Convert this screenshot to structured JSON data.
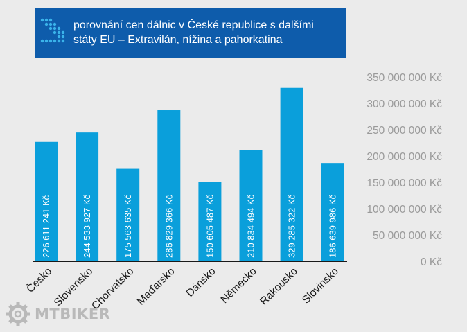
{
  "chart_title": "porovnání cen dálnic v České republice s dalšími státy EU – Extravilán, nížina a pahorkatina",
  "watermark": "MTBIKER",
  "colors": {
    "bar": "#0a9fdb",
    "title_background": "#0e5cab",
    "page_background": "#ebebeb"
  },
  "chart_data": {
    "type": "bar",
    "title": "porovnání cen dálnic v České republice s dalšími státy EU – Extravilán, nížina a pahorkatina",
    "xlabel": "",
    "ylabel": "",
    "ylim": [
      0,
      350000000
    ],
    "categories": [
      "Česko",
      "Slovensko",
      "Chorvatsko",
      "Maďarsko",
      "Dánsko",
      "Německo",
      "Rakousko",
      "Slovinsko"
    ],
    "values": [
      226611241,
      244533927,
      175563635,
      286829366,
      150605487,
      210834494,
      329285322,
      186639986
    ],
    "value_labels": [
      "226 611 241 Kč",
      "244 533 927 Kč",
      "175 563 635 Kč",
      "286 829 366 Kč",
      "150 605 487 Kč",
      "210 834 494 Kč",
      "329 285 322 Kč",
      "186 639 986 Kč"
    ],
    "y_ticks": [
      0,
      50000000,
      100000000,
      150000000,
      200000000,
      250000000,
      300000000,
      350000000
    ],
    "y_tick_labels": [
      "0 Kč",
      "50 000 000 Kč",
      "100 000 000 Kč",
      "150 000 000 Kč",
      "200 000 000 Kč",
      "250 000 000 Kč",
      "300 000 000 Kč",
      "350 000 000 Kč"
    ],
    "grid": false,
    "y_axis_side": "right"
  }
}
